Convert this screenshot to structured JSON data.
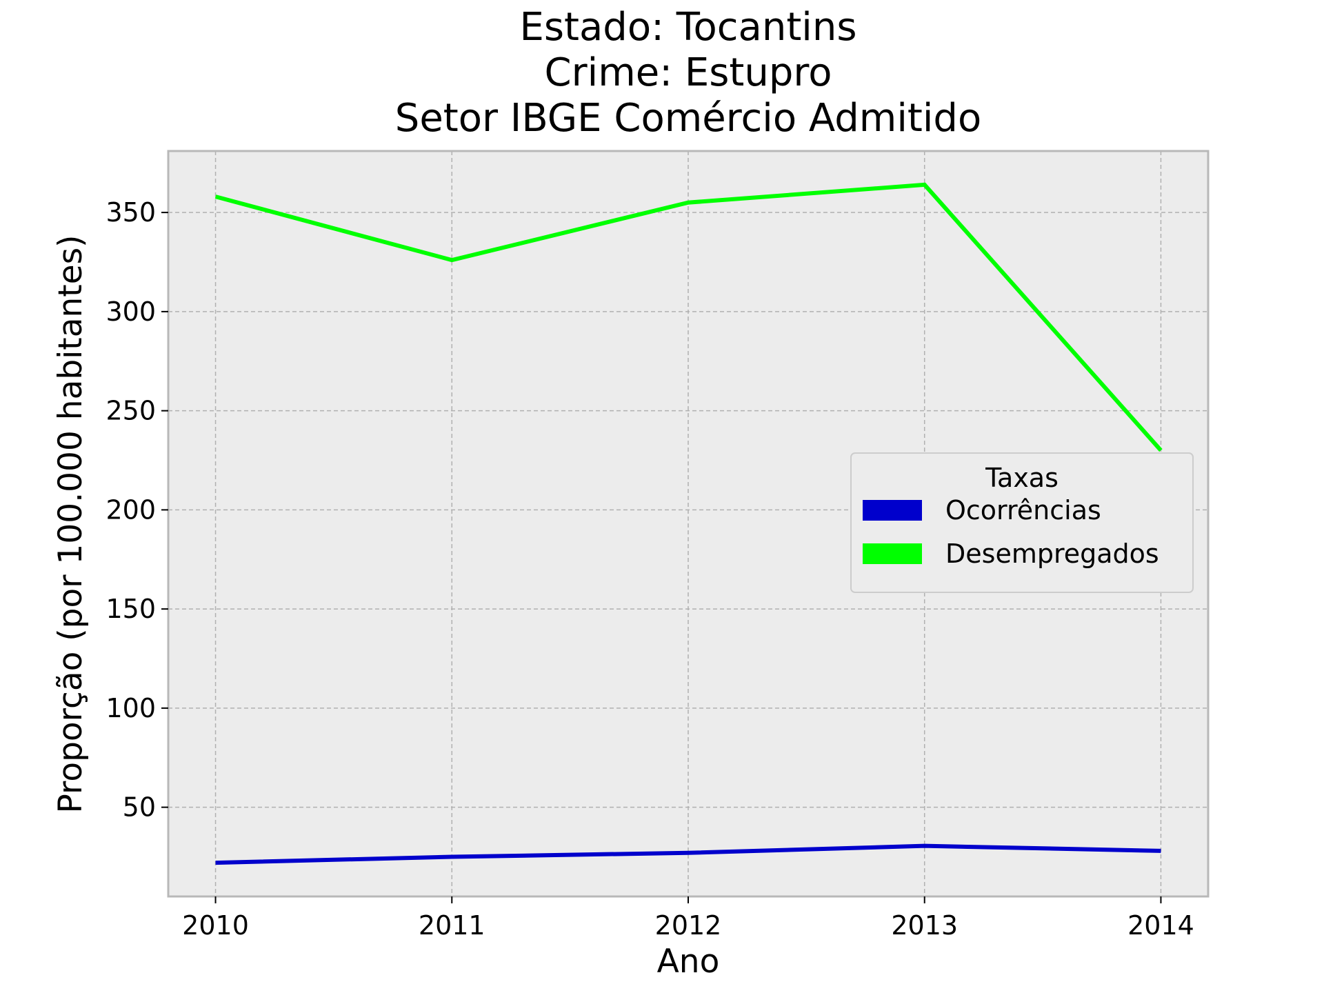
{
  "chart_data": {
    "type": "line",
    "title_lines": [
      "Estado: Tocantins",
      "Crime: Estupro",
      "Setor IBGE  Comércio   Admitido"
    ],
    "xlabel": "Ano",
    "ylabel": "Proporção (por 100.000 habitantes)",
    "categories": [
      "2010",
      "2011",
      "2012",
      "2013",
      "2014"
    ],
    "x": [
      2010,
      2011,
      2012,
      2013,
      2014
    ],
    "xlim": [
      2009.8,
      2014.2
    ],
    "ylim": [
      5,
      381
    ],
    "yticks": [
      50,
      100,
      150,
      200,
      250,
      300,
      350
    ],
    "grid": true,
    "legend": {
      "title": "Taxas",
      "placement": "center-right"
    },
    "series": [
      {
        "name": "Ocorrências",
        "color": "#0000cc",
        "values": [
          22,
          25,
          27,
          30.5,
          28
        ]
      },
      {
        "name": "Desempregados",
        "color": "#00ff00",
        "values": [
          358,
          326,
          355,
          364,
          230
        ]
      }
    ]
  },
  "colors": {
    "plot_background": "#ececec",
    "grid": "#b0b0b0",
    "frame": "#b8b8b8"
  }
}
